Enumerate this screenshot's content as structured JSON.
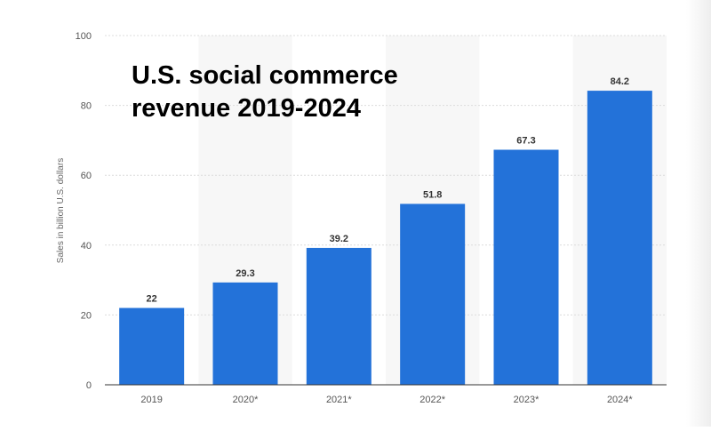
{
  "colors": {
    "bar": "#2372d9",
    "grid": "#dcdcdc",
    "axis": "#333333",
    "band": "#f7f7f7",
    "title": "#000000"
  },
  "chart_data": {
    "type": "bar",
    "title": "U.S. social commerce revenue 2019-2024",
    "title_lines": [
      "U.S. social commerce",
      "revenue 2019-2024"
    ],
    "ylabel": "Sales in billion U.S. dollars",
    "xlabel": "",
    "ylim": [
      0,
      100
    ],
    "yticks": [
      0,
      20,
      40,
      60,
      80,
      100
    ],
    "grid": true,
    "categories": [
      "2019",
      "2020*",
      "2021*",
      "2022*",
      "2023*",
      "2024*"
    ],
    "values": [
      22,
      29.3,
      39.2,
      51.8,
      67.3,
      84.2
    ],
    "value_labels": [
      "22",
      "29.3",
      "39.2",
      "51.8",
      "67.3",
      "84.2"
    ]
  }
}
